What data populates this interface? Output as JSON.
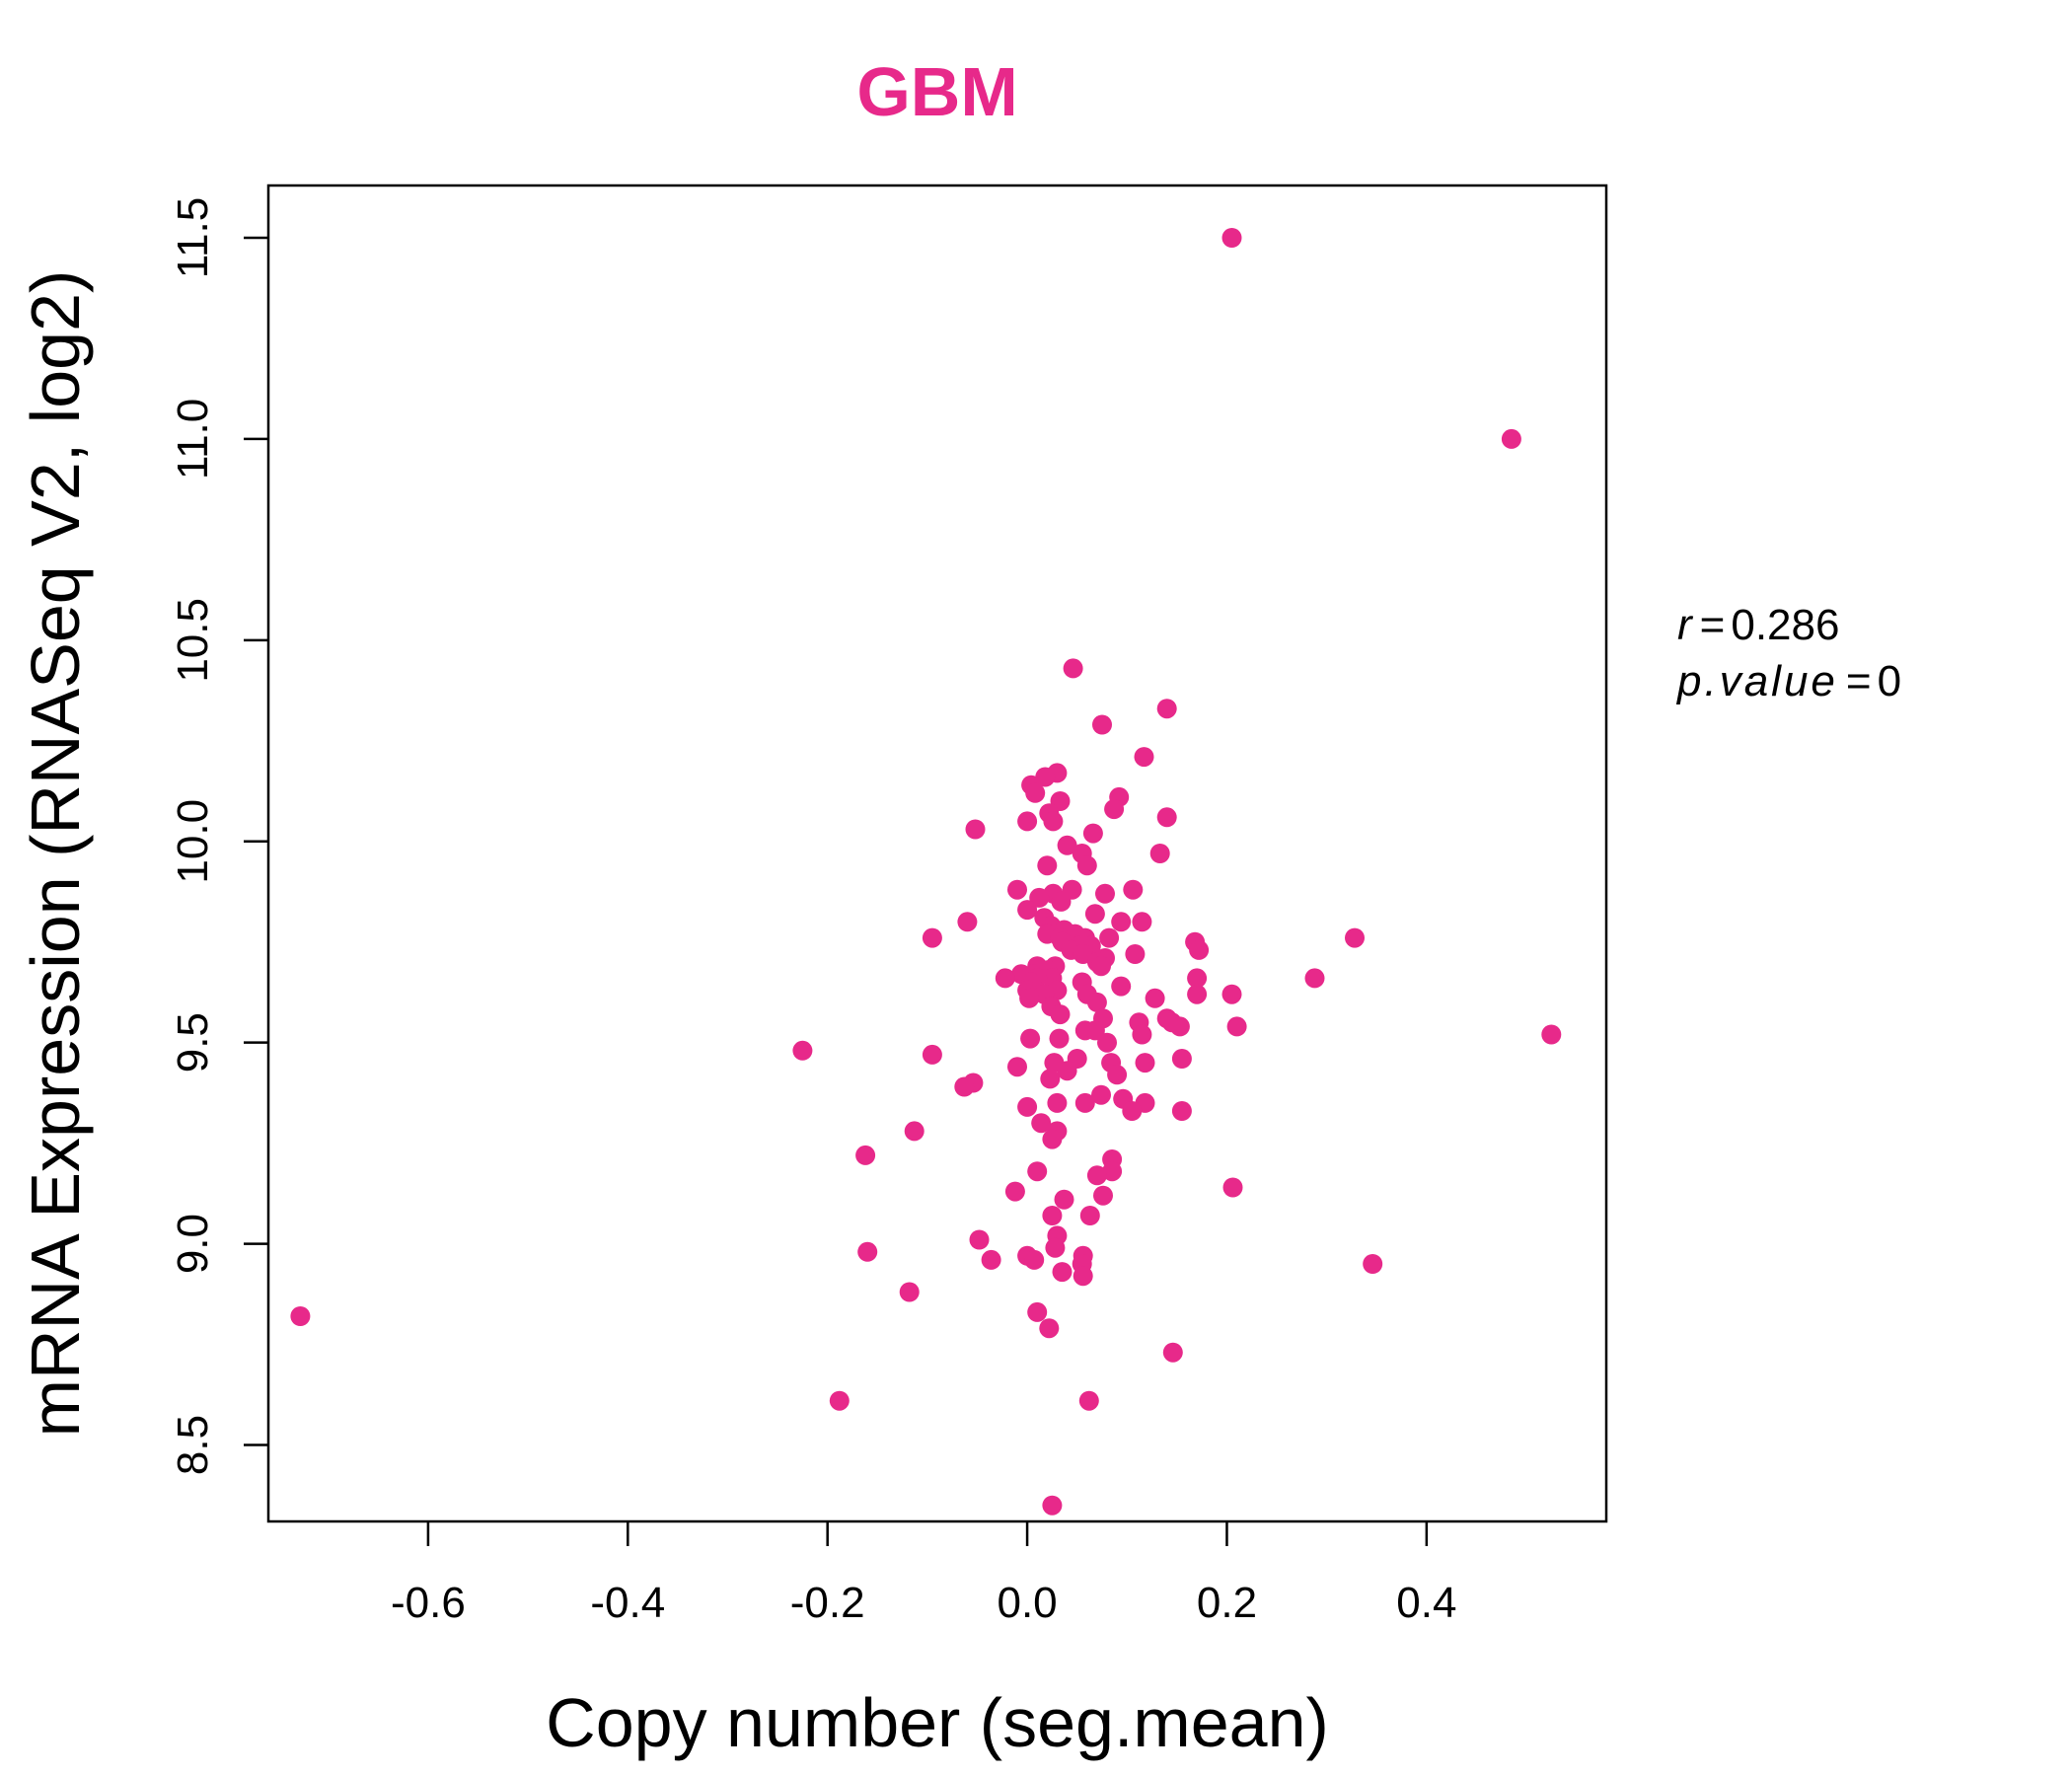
{
  "chart_data": {
    "type": "scatter",
    "title": "GBM",
    "title_color": "#E7298A",
    "point_color": "#E7298A",
    "xlabel": "Copy number (seg.mean)",
    "ylabel": "mRNA Expression (RNASeq V2, log2)",
    "xlim": [
      -0.76,
      0.58
    ],
    "ylim": [
      8.31,
      11.63
    ],
    "x_ticks": [
      -0.6,
      -0.4,
      -0.2,
      0.0,
      0.2,
      0.4
    ],
    "x_tick_labels": [
      "-0.6",
      "-0.4",
      "-0.2",
      "0.0",
      "0.2",
      "0.4"
    ],
    "y_ticks": [
      8.5,
      9.0,
      9.5,
      10.0,
      10.5,
      11.0,
      11.5
    ],
    "y_tick_labels": [
      "8.5",
      "9.0",
      "9.5",
      "10.0",
      "10.5",
      "11.0",
      "11.5"
    ],
    "grid": false,
    "annotations": {
      "r_label": "r",
      "r_value": "0.286",
      "p_label": "p.value",
      "p_value": "0"
    },
    "points": [
      {
        "x": 0.205,
        "y": 11.5
      },
      {
        "x": 0.485,
        "y": 11.0
      },
      {
        "x": 0.046,
        "y": 10.43
      },
      {
        "x": 0.14,
        "y": 10.33
      },
      {
        "x": 0.075,
        "y": 10.29
      },
      {
        "x": 0.117,
        "y": 10.21
      },
      {
        "x": 0.03,
        "y": 10.17
      },
      {
        "x": 0.018,
        "y": 10.16
      },
      {
        "x": 0.004,
        "y": 10.14
      },
      {
        "x": 0.008,
        "y": 10.12
      },
      {
        "x": 0.092,
        "y": 10.11
      },
      {
        "x": 0.033,
        "y": 10.1
      },
      {
        "x": 0.087,
        "y": 10.08
      },
      {
        "x": 0.022,
        "y": 10.07
      },
      {
        "x": 0.14,
        "y": 10.06
      },
      {
        "x": 0.026,
        "y": 10.05
      },
      {
        "x": 0.0,
        "y": 10.05
      },
      {
        "x": -0.052,
        "y": 10.03
      },
      {
        "x": 0.066,
        "y": 10.02
      },
      {
        "x": 0.04,
        "y": 9.99
      },
      {
        "x": 0.055,
        "y": 9.97
      },
      {
        "x": 0.133,
        "y": 9.97
      },
      {
        "x": 0.02,
        "y": 9.94
      },
      {
        "x": 0.06,
        "y": 9.94
      },
      {
        "x": -0.01,
        "y": 9.88
      },
      {
        "x": 0.045,
        "y": 9.88
      },
      {
        "x": 0.026,
        "y": 9.87
      },
      {
        "x": 0.078,
        "y": 9.87
      },
      {
        "x": 0.106,
        "y": 9.88
      },
      {
        "x": 0.012,
        "y": 9.86
      },
      {
        "x": 0.034,
        "y": 9.85
      },
      {
        "x": 0.0,
        "y": 9.83
      },
      {
        "x": 0.068,
        "y": 9.82
      },
      {
        "x": 0.017,
        "y": 9.81
      },
      {
        "x": 0.094,
        "y": 9.8
      },
      {
        "x": 0.115,
        "y": 9.8
      },
      {
        "x": -0.06,
        "y": 9.8
      },
      {
        "x": 0.024,
        "y": 9.79
      },
      {
        "x": 0.037,
        "y": 9.78
      },
      {
        "x": 0.048,
        "y": 9.77
      },
      {
        "x": 0.02,
        "y": 9.77
      },
      {
        "x": 0.058,
        "y": 9.76
      },
      {
        "x": -0.095,
        "y": 9.76
      },
      {
        "x": 0.082,
        "y": 9.76
      },
      {
        "x": 0.033,
        "y": 9.76
      },
      {
        "x": 0.328,
        "y": 9.76
      },
      {
        "x": 0.035,
        "y": 9.75
      },
      {
        "x": 0.168,
        "y": 9.75
      },
      {
        "x": 0.064,
        "y": 9.74
      },
      {
        "x": 0.052,
        "y": 9.74
      },
      {
        "x": 0.044,
        "y": 9.73
      },
      {
        "x": 0.056,
        "y": 9.72
      },
      {
        "x": 0.108,
        "y": 9.72
      },
      {
        "x": 0.172,
        "y": 9.73
      },
      {
        "x": 0.078,
        "y": 9.71
      },
      {
        "x": 0.07,
        "y": 9.7
      },
      {
        "x": 0.074,
        "y": 9.69
      },
      {
        "x": 0.01,
        "y": 9.69
      },
      {
        "x": 0.028,
        "y": 9.69
      },
      {
        "x": 0.02,
        "y": 9.68
      },
      {
        "x": 0.007,
        "y": 9.67
      },
      {
        "x": -0.006,
        "y": 9.67
      },
      {
        "x": 0.025,
        "y": 9.66
      },
      {
        "x": 0.01,
        "y": 9.66
      },
      {
        "x": -0.022,
        "y": 9.66
      },
      {
        "x": 0.288,
        "y": 9.66
      },
      {
        "x": 0.17,
        "y": 9.66
      },
      {
        "x": 0.004,
        "y": 9.65
      },
      {
        "x": 0.055,
        "y": 9.65
      },
      {
        "x": 0.094,
        "y": 9.64
      },
      {
        "x": 0.0,
        "y": 9.63
      },
      {
        "x": 0.03,
        "y": 9.63
      },
      {
        "x": 0.06,
        "y": 9.62
      },
      {
        "x": 0.017,
        "y": 9.62
      },
      {
        "x": 0.205,
        "y": 9.62
      },
      {
        "x": 0.17,
        "y": 9.62
      },
      {
        "x": 0.002,
        "y": 9.61
      },
      {
        "x": 0.128,
        "y": 9.61
      },
      {
        "x": 0.07,
        "y": 9.6
      },
      {
        "x": 0.024,
        "y": 9.59
      },
      {
        "x": 0.033,
        "y": 9.57
      },
      {
        "x": 0.076,
        "y": 9.56
      },
      {
        "x": 0.14,
        "y": 9.56
      },
      {
        "x": 0.112,
        "y": 9.55
      },
      {
        "x": 0.145,
        "y": 9.55
      },
      {
        "x": 0.153,
        "y": 9.54
      },
      {
        "x": 0.21,
        "y": 9.54
      },
      {
        "x": 0.058,
        "y": 9.53
      },
      {
        "x": 0.068,
        "y": 9.53
      },
      {
        "x": 0.115,
        "y": 9.52
      },
      {
        "x": 0.032,
        "y": 9.51
      },
      {
        "x": 0.003,
        "y": 9.51
      },
      {
        "x": 0.525,
        "y": 9.52
      },
      {
        "x": 0.08,
        "y": 9.5
      },
      {
        "x": -0.225,
        "y": 9.48
      },
      {
        "x": -0.095,
        "y": 9.47
      },
      {
        "x": 0.05,
        "y": 9.46
      },
      {
        "x": 0.155,
        "y": 9.46
      },
      {
        "x": 0.084,
        "y": 9.45
      },
      {
        "x": 0.118,
        "y": 9.45
      },
      {
        "x": 0.027,
        "y": 9.45
      },
      {
        "x": -0.01,
        "y": 9.44
      },
      {
        "x": 0.04,
        "y": 9.43
      },
      {
        "x": 0.09,
        "y": 9.42
      },
      {
        "x": 0.023,
        "y": 9.41
      },
      {
        "x": -0.054,
        "y": 9.4
      },
      {
        "x": -0.063,
        "y": 9.39
      },
      {
        "x": 0.074,
        "y": 9.37
      },
      {
        "x": 0.096,
        "y": 9.36
      },
      {
        "x": 0.03,
        "y": 9.35
      },
      {
        "x": 0.118,
        "y": 9.35
      },
      {
        "x": 0.058,
        "y": 9.35
      },
      {
        "x": 0.0,
        "y": 9.34
      },
      {
        "x": 0.105,
        "y": 9.33
      },
      {
        "x": 0.155,
        "y": 9.33
      },
      {
        "x": 0.014,
        "y": 9.3
      },
      {
        "x": -0.113,
        "y": 9.28
      },
      {
        "x": 0.03,
        "y": 9.28
      },
      {
        "x": 0.025,
        "y": 9.26
      },
      {
        "x": -0.162,
        "y": 9.22
      },
      {
        "x": 0.085,
        "y": 9.21
      },
      {
        "x": 0.01,
        "y": 9.18
      },
      {
        "x": 0.085,
        "y": 9.18
      },
      {
        "x": 0.07,
        "y": 9.17
      },
      {
        "x": 0.206,
        "y": 9.14
      },
      {
        "x": -0.012,
        "y": 9.13
      },
      {
        "x": 0.076,
        "y": 9.12
      },
      {
        "x": 0.037,
        "y": 9.11
      },
      {
        "x": 0.025,
        "y": 9.07
      },
      {
        "x": 0.063,
        "y": 9.07
      },
      {
        "x": 0.03,
        "y": 9.02
      },
      {
        "x": -0.048,
        "y": 9.01
      },
      {
        "x": 0.028,
        "y": 8.99
      },
      {
        "x": -0.16,
        "y": 8.98
      },
      {
        "x": 0.0,
        "y": 8.97
      },
      {
        "x": 0.007,
        "y": 8.96
      },
      {
        "x": 0.056,
        "y": 8.97
      },
      {
        "x": 0.055,
        "y": 8.95
      },
      {
        "x": 0.346,
        "y": 8.95
      },
      {
        "x": -0.036,
        "y": 8.96
      },
      {
        "x": 0.035,
        "y": 8.93
      },
      {
        "x": 0.056,
        "y": 8.92
      },
      {
        "x": -0.118,
        "y": 8.88
      },
      {
        "x": 0.01,
        "y": 8.83
      },
      {
        "x": -0.728,
        "y": 8.82
      },
      {
        "x": 0.022,
        "y": 8.79
      },
      {
        "x": 0.146,
        "y": 8.73
      },
      {
        "x": -0.188,
        "y": 8.61
      },
      {
        "x": 0.062,
        "y": 8.61
      },
      {
        "x": 0.025,
        "y": 8.35
      }
    ]
  }
}
